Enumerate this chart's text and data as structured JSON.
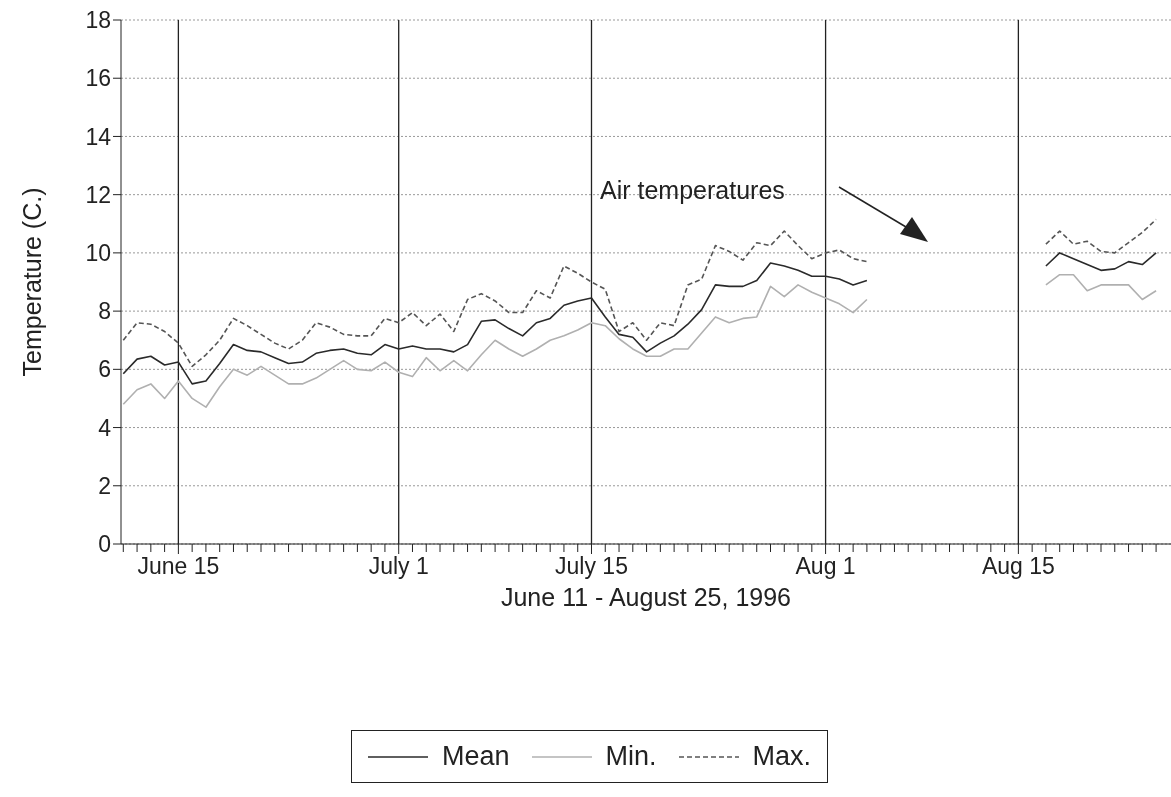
{
  "chart_data": {
    "type": "line",
    "xlabel": "June 11 - August 25, 1996",
    "ylabel": "Temperature (C.)",
    "annotations": [
      "Air temperatures"
    ],
    "x": [
      "1996-06-11",
      "1996-06-12",
      "1996-06-13",
      "1996-06-14",
      "1996-06-15",
      "1996-06-16",
      "1996-06-17",
      "1996-06-18",
      "1996-06-19",
      "1996-06-20",
      "1996-06-21",
      "1996-06-22",
      "1996-06-23",
      "1996-06-24",
      "1996-06-25",
      "1996-06-26",
      "1996-06-27",
      "1996-06-28",
      "1996-06-29",
      "1996-06-30",
      "1996-07-01",
      "1996-07-02",
      "1996-07-03",
      "1996-07-04",
      "1996-07-05",
      "1996-07-06",
      "1996-07-07",
      "1996-07-08",
      "1996-07-09",
      "1996-07-10",
      "1996-07-11",
      "1996-07-12",
      "1996-07-13",
      "1996-07-14",
      "1996-07-15",
      "1996-07-16",
      "1996-07-17",
      "1996-07-18",
      "1996-07-19",
      "1996-07-20",
      "1996-07-21",
      "1996-07-22",
      "1996-07-23",
      "1996-07-24",
      "1996-07-25",
      "1996-07-26",
      "1996-07-27",
      "1996-07-28",
      "1996-07-29",
      "1996-07-30",
      "1996-07-31",
      "1996-08-01",
      "1996-08-02",
      "1996-08-03",
      "1996-08-04",
      "1996-08-05",
      "1996-08-06",
      "1996-08-07",
      "1996-08-08",
      "1996-08-09",
      "1996-08-10",
      "1996-08-11",
      "1996-08-12",
      "1996-08-13",
      "1996-08-14",
      "1996-08-15",
      "1996-08-16",
      "1996-08-17",
      "1996-08-18",
      "1996-08-19",
      "1996-08-20",
      "1996-08-21",
      "1996-08-22",
      "1996-08-23",
      "1996-08-24",
      "1996-08-25"
    ],
    "series": [
      {
        "name": "Mean",
        "color": "#2a2a2a",
        "line_style": "solid",
        "values": [
          5.85,
          6.35,
          6.45,
          6.15,
          6.25,
          5.5,
          5.6,
          6.2,
          6.85,
          6.65,
          6.6,
          6.4,
          6.2,
          6.25,
          6.55,
          6.65,
          6.7,
          6.55,
          6.5,
          6.85,
          6.7,
          6.8,
          6.7,
          6.7,
          6.6,
          6.85,
          7.65,
          7.7,
          7.4,
          7.15,
          7.6,
          7.75,
          8.2,
          8.35,
          8.45,
          7.8,
          7.2,
          7.1,
          6.6,
          6.9,
          7.15,
          7.55,
          8.05,
          8.9,
          8.85,
          8.85,
          9.05,
          9.65,
          9.55,
          9.4,
          9.2,
          9.2,
          9.1,
          8.9,
          9.05,
          null,
          null,
          null,
          null,
          null,
          null,
          null,
          null,
          null,
          null,
          null,
          null,
          9.55,
          10.0,
          9.8,
          9.6,
          9.4,
          9.45,
          9.7,
          9.6,
          10.0
        ]
      },
      {
        "name": "Min.",
        "color": "#b0b0b0",
        "line_style": "solid",
        "values": [
          4.8,
          5.3,
          5.5,
          5.0,
          5.6,
          5.0,
          4.7,
          5.4,
          6.0,
          5.8,
          6.1,
          5.8,
          5.5,
          5.5,
          5.7,
          6.0,
          6.3,
          6.0,
          5.95,
          6.25,
          5.9,
          5.75,
          6.4,
          5.95,
          6.3,
          5.95,
          6.5,
          7.0,
          6.7,
          6.45,
          6.7,
          7.0,
          7.15,
          7.35,
          7.6,
          7.5,
          7.05,
          6.7,
          6.45,
          6.45,
          6.7,
          6.7,
          7.25,
          7.8,
          7.6,
          7.75,
          7.8,
          8.85,
          8.5,
          8.9,
          8.65,
          8.45,
          8.25,
          7.95,
          8.4,
          null,
          null,
          null,
          null,
          null,
          null,
          null,
          null,
          null,
          null,
          null,
          null,
          8.9,
          9.25,
          9.25,
          8.7,
          8.9,
          8.9,
          8.9,
          8.4,
          8.7
        ]
      },
      {
        "name": "Max.",
        "color": "#555555",
        "line_style": "dashed",
        "values": [
          7.0,
          7.6,
          7.55,
          7.3,
          6.9,
          6.1,
          6.5,
          7.0,
          7.75,
          7.5,
          7.2,
          6.9,
          6.7,
          7.0,
          7.6,
          7.45,
          7.2,
          7.15,
          7.15,
          7.75,
          7.6,
          7.95,
          7.5,
          7.9,
          7.3,
          8.4,
          8.6,
          8.35,
          7.95,
          7.95,
          8.7,
          8.45,
          9.55,
          9.3,
          9.0,
          8.75,
          7.3,
          7.6,
          7.0,
          7.6,
          7.5,
          8.9,
          9.1,
          10.25,
          10.05,
          9.75,
          10.35,
          10.25,
          10.75,
          10.25,
          9.8,
          10.0,
          10.1,
          9.8,
          9.7,
          null,
          null,
          null,
          null,
          null,
          null,
          null,
          null,
          null,
          null,
          null,
          null,
          10.3,
          10.75,
          10.3,
          10.4,
          10.05,
          10.0,
          10.35,
          10.7,
          11.15
        ]
      }
    ],
    "xlim": [
      "1996-06-10T20:00",
      "1996-08-26T02:00"
    ],
    "xticks": [
      {
        "value": "1996-06-11",
        "label": null
      },
      {
        "value": "1996-06-12",
        "label": null
      },
      {
        "value": "1996-06-13",
        "label": null
      },
      {
        "value": "1996-06-14",
        "label": null
      },
      {
        "value": "1996-06-15",
        "label": "June 15"
      },
      {
        "value": "1996-06-16",
        "label": null
      },
      {
        "value": "1996-06-17",
        "label": null
      },
      {
        "value": "1996-06-18",
        "label": null
      },
      {
        "value": "1996-06-19",
        "label": null
      },
      {
        "value": "1996-06-20",
        "label": null
      },
      {
        "value": "1996-06-21",
        "label": null
      },
      {
        "value": "1996-06-22",
        "label": null
      },
      {
        "value": "1996-06-23",
        "label": null
      },
      {
        "value": "1996-06-24",
        "label": null
      },
      {
        "value": "1996-06-25",
        "label": null
      },
      {
        "value": "1996-06-26",
        "label": null
      },
      {
        "value": "1996-06-27",
        "label": null
      },
      {
        "value": "1996-06-28",
        "label": null
      },
      {
        "value": "1996-06-29",
        "label": null
      },
      {
        "value": "1996-06-30",
        "label": null
      },
      {
        "value": "1996-07-01",
        "label": "July 1"
      },
      {
        "value": "1996-07-02",
        "label": null
      },
      {
        "value": "1996-07-03",
        "label": null
      },
      {
        "value": "1996-07-04",
        "label": null
      },
      {
        "value": "1996-07-05",
        "label": null
      },
      {
        "value": "1996-07-06",
        "label": null
      },
      {
        "value": "1996-07-07",
        "label": null
      },
      {
        "value": "1996-07-08",
        "label": null
      },
      {
        "value": "1996-07-09",
        "label": null
      },
      {
        "value": "1996-07-10",
        "label": null
      },
      {
        "value": "1996-07-11",
        "label": null
      },
      {
        "value": "1996-07-12",
        "label": null
      },
      {
        "value": "1996-07-13",
        "label": null
      },
      {
        "value": "1996-07-14",
        "label": null
      },
      {
        "value": "1996-07-15",
        "label": "July 15"
      },
      {
        "value": "1996-07-16",
        "label": null
      },
      {
        "value": "1996-07-17",
        "label": null
      },
      {
        "value": "1996-07-18",
        "label": null
      },
      {
        "value": "1996-07-19",
        "label": null
      },
      {
        "value": "1996-07-20",
        "label": null
      },
      {
        "value": "1996-07-21",
        "label": null
      },
      {
        "value": "1996-07-22",
        "label": null
      },
      {
        "value": "1996-07-23",
        "label": null
      },
      {
        "value": "1996-07-24",
        "label": null
      },
      {
        "value": "1996-07-25",
        "label": null
      },
      {
        "value": "1996-07-26",
        "label": null
      },
      {
        "value": "1996-07-27",
        "label": null
      },
      {
        "value": "1996-07-28",
        "label": null
      },
      {
        "value": "1996-07-29",
        "label": null
      },
      {
        "value": "1996-07-30",
        "label": null
      },
      {
        "value": "1996-07-31",
        "label": null
      },
      {
        "value": "1996-08-01",
        "label": "Aug 1"
      },
      {
        "value": "1996-08-02",
        "label": null
      },
      {
        "value": "1996-08-03",
        "label": null
      },
      {
        "value": "1996-08-04",
        "label": null
      },
      {
        "value": "1996-08-05",
        "label": null
      },
      {
        "value": "1996-08-06",
        "label": null
      },
      {
        "value": "1996-08-07",
        "label": null
      },
      {
        "value": "1996-08-08",
        "label": null
      },
      {
        "value": "1996-08-09",
        "label": null
      },
      {
        "value": "1996-08-10",
        "label": null
      },
      {
        "value": "1996-08-11",
        "label": null
      },
      {
        "value": "1996-08-12",
        "label": null
      },
      {
        "value": "1996-08-13",
        "label": null
      },
      {
        "value": "1996-08-14",
        "label": null
      },
      {
        "value": "1996-08-15",
        "label": "Aug 15"
      },
      {
        "value": "1996-08-16",
        "label": null
      },
      {
        "value": "1996-08-17",
        "label": null
      },
      {
        "value": "1996-08-18",
        "label": null
      },
      {
        "value": "1996-08-19",
        "label": null
      },
      {
        "value": "1996-08-20",
        "label": null
      },
      {
        "value": "1996-08-21",
        "label": null
      },
      {
        "value": "1996-08-22",
        "label": null
      },
      {
        "value": "1996-08-23",
        "label": null
      },
      {
        "value": "1996-08-24",
        "label": null
      },
      {
        "value": "1996-08-25",
        "label": null
      }
    ],
    "ylim": [
      0,
      18
    ],
    "yticks": [
      0,
      2,
      4,
      6,
      8,
      10,
      12,
      14,
      16,
      18
    ],
    "grid": true,
    "legend": "bottom"
  }
}
